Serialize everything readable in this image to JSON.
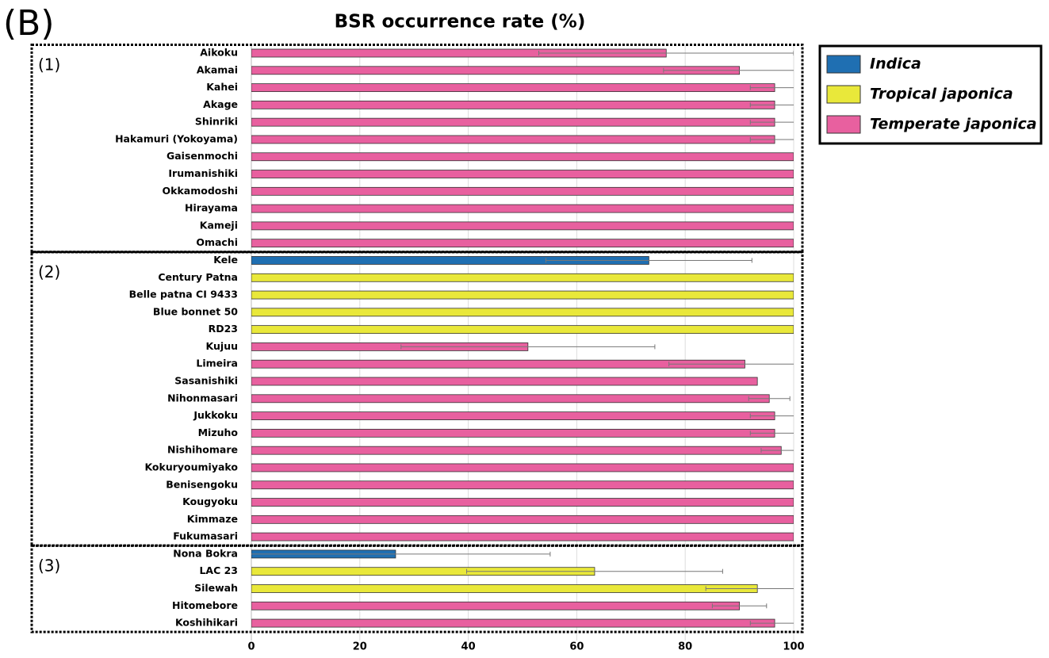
{
  "chart_data": {
    "type": "bar",
    "orientation": "horizontal",
    "panel_label": "(B)",
    "title": "BSR occurrence rate (%)",
    "groups": [
      {
        "label": "(1)",
        "categories": [
          "Aikoku",
          "Akamai",
          "Kahei",
          "Akage",
          "Shinriki",
          "Hakamuri (Yokoyama)",
          "Gaisenmochi",
          "Irumanishiki",
          "Okkamodoshi",
          "Hirayama",
          "Kameji",
          "Omachi"
        ]
      },
      {
        "label": "(2)",
        "categories": [
          "Kele",
          "Century Patna",
          "Belle patna CI 9433",
          "Blue bonnet 50",
          "RD23",
          "Kujuu",
          "Limeira",
          "Sasanishiki",
          "Nihonmasari",
          "Jukkoku",
          "Mizuho",
          "Nishihomare",
          "Kokuryoumiyako",
          "Benisengoku",
          "Kougyoku",
          "Kimmaze",
          "Fukumasari"
        ]
      },
      {
        "label": "(3)",
        "categories": [
          "Nona Bokra",
          "LAC 23",
          "Silewah",
          "Hitomebore",
          "Koshihikari"
        ]
      }
    ],
    "series": [
      {
        "name": "Indica",
        "color": "#1f6fb2",
        "values": [
          null,
          null,
          null,
          null,
          null,
          null,
          null,
          null,
          null,
          null,
          null,
          null,
          73.3,
          null,
          null,
          null,
          null,
          null,
          null,
          null,
          null,
          null,
          null,
          null,
          null,
          null,
          null,
          null,
          null,
          26.6,
          null,
          null,
          null,
          null
        ],
        "errors": [
          null,
          null,
          null,
          null,
          null,
          null,
          null,
          null,
          null,
          null,
          null,
          null,
          19,
          null,
          null,
          null,
          null,
          null,
          null,
          null,
          null,
          null,
          null,
          null,
          null,
          null,
          null,
          null,
          null,
          28.5,
          null,
          null,
          null,
          null
        ]
      },
      {
        "name": "Tropical japonica",
        "color": "#e9e83a",
        "values": [
          null,
          null,
          null,
          null,
          null,
          null,
          null,
          null,
          null,
          null,
          null,
          null,
          null,
          100,
          100,
          100,
          100,
          null,
          null,
          null,
          null,
          null,
          null,
          null,
          null,
          null,
          null,
          null,
          null,
          null,
          63.3,
          93.3,
          null,
          null
        ],
        "errors": [
          null,
          null,
          null,
          null,
          null,
          null,
          null,
          null,
          null,
          null,
          null,
          null,
          null,
          0,
          0,
          0,
          0,
          null,
          null,
          null,
          null,
          null,
          null,
          null,
          null,
          null,
          null,
          null,
          null,
          null,
          23.6,
          9.5,
          null,
          null
        ]
      },
      {
        "name": "Temperate japonica",
        "color": "#e8609f",
        "values": [
          76.5,
          90,
          96.5,
          96.5,
          96.5,
          96.5,
          100,
          100,
          100,
          100,
          100,
          100,
          null,
          null,
          null,
          null,
          null,
          51,
          91,
          93.3,
          95.5,
          96.5,
          96.5,
          97.7,
          100,
          100,
          100,
          100,
          100,
          null,
          null,
          null,
          90,
          96.5
        ],
        "errors": [
          23.5,
          14,
          4.5,
          4.5,
          4.5,
          4.5,
          0,
          0,
          0,
          0,
          0,
          0,
          null,
          null,
          null,
          null,
          null,
          23.4,
          14,
          0,
          3.8,
          4.5,
          4.5,
          3.7,
          0,
          0,
          0,
          0,
          0,
          null,
          null,
          null,
          5,
          4.5
        ]
      }
    ],
    "xlim": [
      0,
      100
    ],
    "xticks": [
      0,
      20,
      40,
      60,
      80,
      100
    ],
    "grid": true
  }
}
